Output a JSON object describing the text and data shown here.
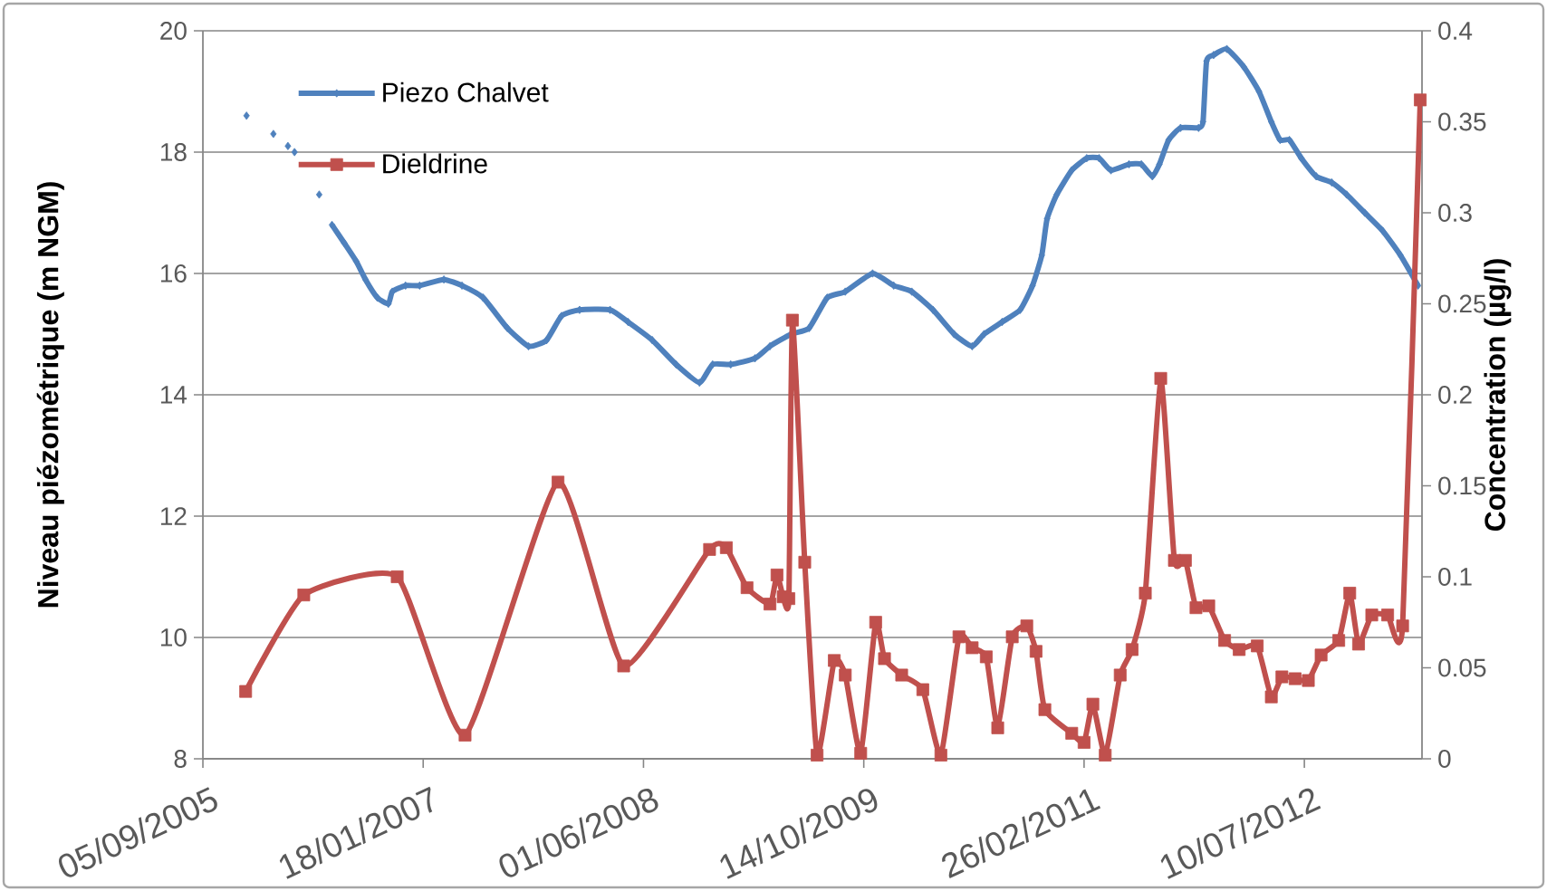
{
  "chart_data": {
    "type": "line",
    "ylabel": "Niveau piézométrique (m NGM)",
    "y2label": "Concentration (µg/l)",
    "xlim": [
      "2005-09-05",
      "2013-04-03"
    ],
    "xticks": [
      {
        "value": "2005-09-05",
        "label": "05/09/2005"
      },
      {
        "value": "2007-01-18",
        "label": "18/01/2007"
      },
      {
        "value": "2008-06-01",
        "label": "01/06/2008"
      },
      {
        "value": "2009-10-14",
        "label": "14/10/2009"
      },
      {
        "value": "2011-02-26",
        "label": "26/02/2011"
      },
      {
        "value": "2012-07-10",
        "label": "10/07/2012"
      }
    ],
    "ylim": [
      8,
      20
    ],
    "yticks": [
      8,
      10,
      12,
      14,
      16,
      18,
      20
    ],
    "y2lim": [
      0,
      0.4
    ],
    "y2ticks": [
      0,
      0.05,
      0.1,
      0.15,
      0.2,
      0.25,
      0.3,
      0.35,
      0.4
    ],
    "grid": "y",
    "legend": "top left",
    "series": [
      {
        "name": "Piezo Chalvet",
        "color": "#4f81bd",
        "marker": "diamond",
        "x": [
          "2005-12-13",
          "2006-01-12",
          "2006-02-12",
          "2006-03-01",
          "2006-03-17",
          "2006-03-25",
          "2006-04-01",
          "2006-05-01",
          "2006-05-27",
          "2006-06-10",
          "2006-06-25",
          "2006-07-23",
          "2006-08-19",
          "2006-09-09",
          "2006-10-06",
          "2006-10-31",
          "2006-11-09",
          "2006-12-09",
          "2007-01-10",
          "2007-03-06",
          "2007-04-16",
          "2007-06-03",
          "2007-07-28",
          "2007-09-14",
          "2007-10-25",
          "2007-11-28",
          "2008-01-08",
          "2008-03-17",
          "2008-04-27",
          "2008-06-21",
          "2008-08-14",
          "2008-10-06",
          "2008-11-05",
          "2008-12-16",
          "2009-02-09",
          "2009-03-15",
          "2009-05-02",
          "2009-06-12",
          "2009-07-23",
          "2009-09-02",
          "2009-11-03",
          "2009-12-21",
          "2010-01-31",
          "2010-03-20",
          "2010-05-07",
          "2010-06-17",
          "2010-07-14",
          "2010-08-24",
          "2010-10-04",
          "2010-11-01",
          "2010-11-22",
          "2010-12-04",
          "2010-12-26",
          "2011-01-29",
          "2011-03-04",
          "2011-04-01",
          "2011-04-28",
          "2011-06-08",
          "2011-07-06",
          "2011-07-31",
          "2011-08-16",
          "2011-09-06",
          "2011-10-03",
          "2011-11-13",
          "2011-11-23",
          "2011-12-01",
          "2011-12-17",
          "2012-01-16",
          "2012-02-24",
          "2012-03-29",
          "2012-04-26",
          "2012-05-16",
          "2012-06-06",
          "2012-07-03",
          "2012-08-06",
          "2012-09-10",
          "2012-10-14",
          "2012-11-24",
          "2013-01-04",
          "2013-02-13",
          "2013-03-25"
        ],
        "values": [
          18.6,
          null,
          18.3,
          null,
          18.1,
          null,
          18.0,
          null,
          17.3,
          null,
          16.8,
          16.5,
          16.2,
          15.9,
          15.6,
          15.5,
          15.7,
          15.8,
          15.8,
          15.9,
          15.8,
          15.6,
          15.1,
          14.8,
          14.9,
          15.3,
          15.4,
          15.4,
          15.2,
          14.9,
          14.5,
          14.2,
          14.5,
          14.5,
          14.6,
          14.8,
          15.0,
          15.1,
          15.6,
          15.7,
          16.0,
          15.8,
          15.7,
          15.4,
          15.0,
          14.8,
          15.0,
          15.2,
          15.4,
          15.8,
          16.3,
          16.9,
          17.3,
          17.7,
          17.9,
          17.9,
          17.7,
          17.8,
          17.8,
          17.6,
          17.8,
          18.2,
          18.4,
          18.4,
          18.5,
          19.5,
          19.6,
          19.7,
          19.4,
          19.0,
          18.5,
          18.2,
          18.2,
          17.9,
          17.6,
          17.5,
          17.3,
          17.0,
          16.7,
          16.3,
          15.8
        ]
      },
      {
        "name": "Dieldrine",
        "color": "#c0504d",
        "marker": "square",
        "axis": "y2",
        "x": [
          "2005-12-11",
          "2006-04-22",
          "2006-11-20",
          "2007-04-23",
          "2007-11-20",
          "2008-04-17",
          "2008-10-29",
          "2008-12-06",
          "2009-01-22",
          "2009-03-15",
          "2009-03-31",
          "2009-04-14",
          "2009-04-27",
          "2009-05-05",
          "2009-06-02",
          "2009-06-30",
          "2009-08-08",
          "2009-09-02",
          "2009-10-07",
          "2009-11-10",
          "2009-11-30",
          "2010-01-08",
          "2010-02-25",
          "2010-04-07",
          "2010-05-18",
          "2010-06-17",
          "2010-07-19",
          "2010-08-14",
          "2010-09-16",
          "2010-10-19",
          "2010-11-09",
          "2010-11-29",
          "2011-01-29",
          "2011-02-26",
          "2011-03-18",
          "2011-04-15",
          "2011-05-19",
          "2011-06-15",
          "2011-07-15",
          "2011-08-19",
          "2011-09-19",
          "2011-10-14",
          "2011-11-07",
          "2011-12-06",
          "2012-01-11",
          "2012-02-13",
          "2012-03-25",
          "2012-04-26",
          "2012-05-20",
          "2012-06-19",
          "2012-07-19",
          "2012-08-17",
          "2012-09-26",
          "2012-10-21",
          "2012-11-10",
          "2012-12-10",
          "2013-01-15",
          "2013-02-18",
          "2013-03-30"
        ],
        "values": [
          0.037,
          0.09,
          0.1,
          0.013,
          0.152,
          0.051,
          0.115,
          0.116,
          0.094,
          0.085,
          0.101,
          0.089,
          0.088,
          0.241,
          0.108,
          0.002,
          0.054,
          0.046,
          0.003,
          0.075,
          0.055,
          0.046,
          0.038,
          0.002,
          0.067,
          0.061,
          0.056,
          0.017,
          0.067,
          0.073,
          0.059,
          0.027,
          0.014,
          0.009,
          0.03,
          0.002,
          0.046,
          0.06,
          0.091,
          0.209,
          0.109,
          0.109,
          0.083,
          0.084,
          0.065,
          0.06,
          0.062,
          0.034,
          0.045,
          0.044,
          0.043,
          0.057,
          0.065,
          0.091,
          0.063,
          0.079,
          0.079,
          0.073,
          0.362
        ]
      }
    ]
  }
}
